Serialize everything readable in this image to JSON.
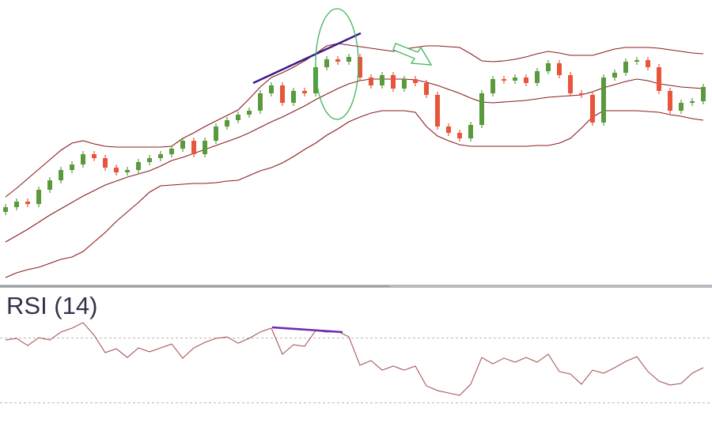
{
  "chart_data": [
    {
      "type": "candlestick",
      "ylim": [
        0,
        360
      ],
      "up_color": "#5b9a3c",
      "down_color": "#e8553a",
      "open": [
        92,
        98,
        105,
        102,
        120,
        132,
        145,
        152,
        165,
        160,
        148,
        142,
        145,
        155,
        160,
        165,
        172,
        182,
        165,
        182,
        200,
        208,
        215,
        220,
        242,
        252,
        230,
        245,
        242,
        275,
        285,
        282,
        288,
        262,
        252,
        265,
        248,
        260,
        255,
        240,
        200,
        192,
        185,
        202,
        242,
        260,
        258,
        262,
        255,
        270,
        280,
        265,
        242,
        240,
        205,
        262,
        268,
        282,
        284,
        275,
        245,
        220,
        230,
        232
      ],
      "high": [
        102,
        109,
        109,
        124,
        136,
        149,
        156,
        169,
        169,
        164,
        152,
        149,
        159,
        164,
        169,
        176,
        186,
        186,
        186,
        204,
        212,
        219,
        224,
        246,
        256,
        256,
        249,
        249,
        279,
        289,
        289,
        292,
        292,
        266,
        269,
        269,
        264,
        264,
        259,
        244,
        204,
        196,
        206,
        246,
        264,
        264,
        266,
        266,
        274,
        284,
        284,
        269,
        246,
        244,
        266,
        272,
        286,
        288,
        288,
        279,
        249,
        234,
        236,
        254
      ],
      "low": [
        88,
        94,
        98,
        98,
        116,
        128,
        141,
        148,
        156,
        144,
        138,
        138,
        141,
        151,
        156,
        161,
        168,
        161,
        161,
        178,
        196,
        204,
        211,
        216,
        238,
        226,
        226,
        238,
        238,
        271,
        278,
        278,
        258,
        248,
        248,
        244,
        244,
        251,
        236,
        196,
        188,
        181,
        181,
        198,
        238,
        254,
        254,
        251,
        251,
        266,
        261,
        238,
        236,
        201,
        201,
        258,
        264,
        278,
        271,
        241,
        216,
        216,
        226,
        228
      ],
      "close": [
        98,
        105,
        102,
        120,
        132,
        145,
        152,
        165,
        160,
        148,
        142,
        145,
        155,
        160,
        165,
        172,
        182,
        165,
        182,
        200,
        208,
        215,
        220,
        242,
        252,
        230,
        245,
        242,
        275,
        285,
        282,
        288,
        262,
        252,
        265,
        248,
        260,
        255,
        240,
        200,
        192,
        185,
        202,
        242,
        260,
        258,
        262,
        255,
        270,
        280,
        265,
        242,
        240,
        205,
        262,
        268,
        282,
        284,
        275,
        245,
        220,
        230,
        232,
        250
      ],
      "series": [
        {
          "color": "#8b1c1c",
          "values": [
            111,
            122,
            134,
            146,
            158,
            170,
            179,
            182,
            178,
            175,
            174,
            174,
            174,
            174,
            174,
            175,
            185,
            192,
            200,
            207,
            214,
            221,
            235,
            250,
            262,
            268,
            275,
            283,
            292,
            302,
            305,
            303,
            301,
            299,
            297,
            295,
            298,
            300,
            302,
            302,
            301,
            300,
            292,
            283,
            282,
            283,
            285,
            288,
            292,
            295,
            293,
            290,
            290,
            290,
            294,
            298,
            300,
            300,
            300,
            299,
            297,
            295,
            293,
            292
          ]
        },
        {
          "color": "#8b1c1c",
          "values": [
            54,
            62,
            70,
            79,
            88,
            96,
            104,
            112,
            119,
            126,
            131,
            136,
            140,
            144,
            150,
            157,
            161,
            166,
            171,
            176,
            181,
            186,
            192,
            199,
            206,
            212,
            219,
            226,
            234,
            241,
            248,
            254,
            258,
            260,
            260,
            260,
            260,
            259,
            256,
            252,
            247,
            242,
            236,
            231,
            230,
            231,
            232,
            233,
            235,
            237,
            238,
            239,
            240,
            244,
            249,
            253,
            257,
            260,
            258,
            254,
            252,
            250,
            249,
            248
          ]
        },
        {
          "color": "#8b1c1c",
          "values": [
            9,
            15,
            19,
            22,
            27,
            32,
            35,
            42,
            54,
            66,
            80,
            92,
            104,
            117,
            125,
            126,
            127,
            128,
            128,
            129,
            131,
            132,
            138,
            144,
            148,
            154,
            162,
            171,
            179,
            189,
            197,
            206,
            212,
            217,
            220,
            220,
            220,
            218,
            200,
            188,
            182,
            177,
            175,
            175,
            175,
            175,
            175,
            175,
            176,
            176,
            179,
            185,
            198,
            212,
            220,
            220,
            220,
            220,
            219,
            218,
            215,
            213,
            210,
            208
          ]
        }
      ]
    },
    {
      "type": "line",
      "title": "RSI (14)",
      "ylim": [
        20,
        80
      ],
      "levels": [
        70,
        30
      ],
      "color": "#a85858",
      "values": [
        68.8,
        69.8,
        65.4,
        70.2,
        68.8,
        73.7,
        76.1,
        79.5,
        71.7,
        61,
        63.4,
        58,
        63.9,
        61.5,
        63.9,
        66.3,
        57.6,
        63.9,
        67.3,
        69.8,
        70.7,
        66.8,
        69.8,
        73.7,
        76.1,
        60,
        65.9,
        64.9,
        74.6,
        73.7,
        74.1,
        70.7,
        53.2,
        56.1,
        50.2,
        52.7,
        50.2,
        52.7,
        40.5,
        37.6,
        36.1,
        34.6,
        41.5,
        58,
        54.1,
        57.6,
        55.1,
        58,
        55.1,
        60,
        49.3,
        47.8,
        41.5,
        50.2,
        48.3,
        51.7,
        55.6,
        58.5,
        49.3,
        43.4,
        41,
        42,
        48.3,
        51.7
      ]
    }
  ]
}
